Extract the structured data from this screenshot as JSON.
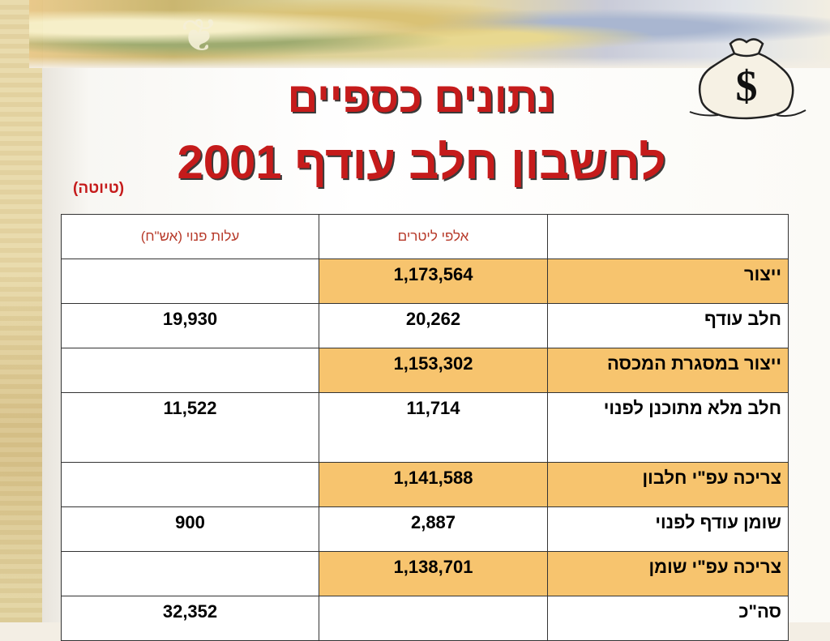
{
  "slide": {
    "title_line1": "נתונים כספיים",
    "title_line2": "לחשבון חלב עודף 2001",
    "draft_label": "(טיוטה)",
    "icon": "money-bag-icon",
    "bag_symbol": "$",
    "accent_color": "#c51b1b",
    "highlight_color": "#f7c46e"
  },
  "table": {
    "headers": {
      "name": "",
      "liters": "אלפי ליטרים",
      "cost": "עלות פנוי (אש\"ח)"
    },
    "rows": [
      {
        "name": "ייצור",
        "liters": "1,173,564",
        "cost": "",
        "highlight": true
      },
      {
        "name": "חלב עודף",
        "liters": "20,262",
        "cost": "19,930",
        "highlight": false
      },
      {
        "name": "ייצור במסגרת המכסה",
        "liters": "1,153,302",
        "cost": "",
        "highlight": true
      },
      {
        "name": "חלב מלא מתוכנן לפנוי",
        "liters": "11,714",
        "cost": "11,522",
        "highlight": false
      },
      {
        "name": "צריכה עפ\"י חלבון",
        "liters": "1,141,588",
        "cost": "",
        "highlight": true
      },
      {
        "name": "שומן עודף לפנוי",
        "liters": "2,887",
        "cost": "900",
        "highlight": false
      },
      {
        "name": "צריכה עפ\"י שומן",
        "liters": "1,138,701",
        "cost": "",
        "highlight": true
      },
      {
        "name": "סה\"כ",
        "liters": "",
        "cost": "32,352",
        "highlight": false
      }
    ]
  }
}
